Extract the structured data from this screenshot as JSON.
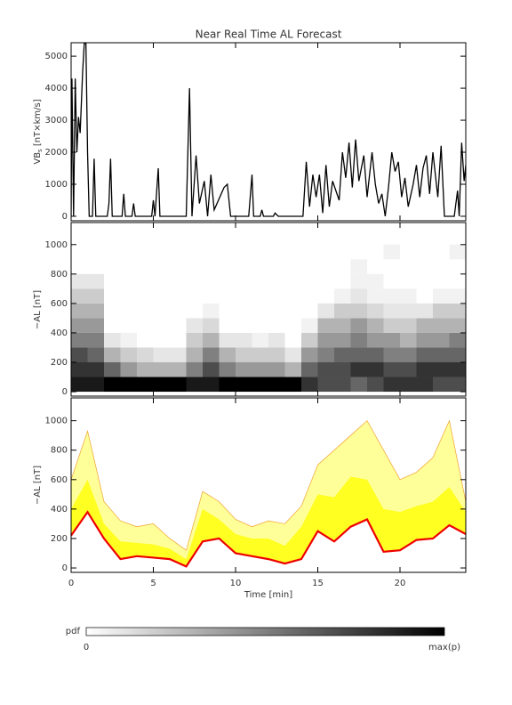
{
  "chart_data": [
    {
      "type": "line",
      "title": "Near Real Time AL Forecast",
      "ylabel": {
        "main": "VB",
        "sub": "s",
        "unit": "[nT×km/s]"
      },
      "color": "#000000",
      "x": [
        0,
        0.05,
        0.15,
        0.25,
        0.35,
        0.45,
        0.55,
        0.7,
        0.8,
        0.9,
        1.0,
        1.1,
        1.3,
        1.4,
        1.5,
        2.2,
        2.3,
        2.4,
        2.5,
        3.1,
        3.2,
        3.3,
        3.7,
        3.8,
        3.9,
        4.9,
        5.0,
        5.1,
        5.3,
        5.4,
        7.0,
        7.2,
        7.35,
        7.6,
        7.8,
        8.1,
        8.3,
        8.5,
        8.7,
        9.3,
        9.5,
        9.7,
        10.8,
        11.0,
        11.1,
        11.5,
        11.6,
        11.7,
        12.3,
        12.4,
        12.6,
        14.1,
        14.3,
        14.5,
        14.7,
        14.9,
        15.1,
        15.3,
        15.5,
        15.7,
        15.9,
        16.3,
        16.5,
        16.7,
        16.9,
        17.1,
        17.3,
        17.5,
        17.8,
        18.0,
        18.3,
        18.5,
        18.7,
        18.9,
        19.1,
        19.3,
        19.5,
        19.7,
        19.9,
        20.1,
        20.3,
        20.5,
        20.8,
        21.0,
        21.2,
        21.4,
        21.6,
        21.8,
        22.0,
        22.3,
        22.5,
        22.7,
        23.3,
        23.5,
        23.6,
        23.75,
        23.9,
        24.0
      ],
      "y": [
        0,
        4300,
        0,
        4300,
        2000,
        3100,
        2600,
        4500,
        5400,
        5400,
        2000,
        0,
        0,
        1800,
        0,
        0,
        400,
        1800,
        0,
        0,
        700,
        0,
        0,
        400,
        0,
        0,
        500,
        0,
        1500,
        0,
        0,
        4000,
        0,
        1900,
        400,
        1100,
        0,
        1300,
        200,
        900,
        1000,
        0,
        0,
        1300,
        0,
        0,
        200,
        0,
        0,
        100,
        0,
        0,
        1700,
        300,
        1300,
        600,
        1300,
        100,
        1600,
        300,
        1100,
        500,
        2000,
        1200,
        2300,
        900,
        2400,
        1100,
        1900,
        600,
        2000,
        1000,
        400,
        700,
        0,
        900,
        2000,
        1400,
        1700,
        600,
        1200,
        300,
        1000,
        1600,
        600,
        1500,
        1900,
        700,
        2000,
        600,
        2200,
        0,
        0,
        800,
        0,
        2300,
        1100,
        1600
      ],
      "xlim": [
        0,
        24
      ],
      "xticks": [
        0,
        5,
        10,
        15,
        20
      ],
      "ylim": [
        -140,
        5420
      ],
      "yticks": [
        0,
        1000,
        2000,
        3000,
        4000,
        5000
      ]
    },
    {
      "type": "heatmap",
      "ylabel": "−AL [nT]",
      "x_bins": [
        0,
        1,
        2,
        3,
        4,
        5,
        6,
        7,
        8,
        9,
        10,
        11,
        12,
        13,
        14,
        15,
        16,
        17,
        18,
        19,
        20,
        21,
        22,
        23,
        24
      ],
      "y_bins": [
        0,
        100,
        200,
        300,
        400,
        500,
        600,
        700,
        800,
        900,
        1000
      ],
      "z": [
        [
          0.9,
          0.8,
          0.7,
          0.5,
          0.4,
          0.3,
          0.2,
          0.1,
          0,
          0
        ],
        [
          0.9,
          0.8,
          0.6,
          0.5,
          0.4,
          0.3,
          0.2,
          0.1,
          0,
          0
        ],
        [
          1,
          0.6,
          0.3,
          0.1,
          0,
          0,
          0,
          0,
          0,
          0
        ],
        [
          1,
          0.4,
          0.2,
          0.05,
          0,
          0,
          0,
          0,
          0,
          0
        ],
        [
          1,
          0.3,
          0.15,
          0,
          0,
          0,
          0,
          0,
          0,
          0
        ],
        [
          1,
          0.3,
          0.1,
          0,
          0,
          0,
          0,
          0,
          0,
          0
        ],
        [
          1,
          0.3,
          0.1,
          0,
          0,
          0,
          0,
          0,
          0,
          0
        ],
        [
          0.9,
          0.5,
          0.3,
          0.2,
          0.1,
          0,
          0,
          0,
          0,
          0
        ],
        [
          0.9,
          0.7,
          0.5,
          0.3,
          0.15,
          0.05,
          0,
          0,
          0,
          0
        ],
        [
          1,
          0.5,
          0.3,
          0.1,
          0,
          0,
          0,
          0,
          0,
          0
        ],
        [
          1,
          0.4,
          0.2,
          0.1,
          0,
          0,
          0,
          0,
          0,
          0
        ],
        [
          1,
          0.4,
          0.2,
          0.05,
          0,
          0,
          0,
          0,
          0,
          0
        ],
        [
          1,
          0.4,
          0.2,
          0.1,
          0,
          0,
          0,
          0,
          0,
          0
        ],
        [
          1,
          0.3,
          0.1,
          0,
          0,
          0,
          0,
          0,
          0,
          0
        ],
        [
          0.8,
          0.6,
          0.4,
          0.2,
          0.05,
          0,
          0,
          0,
          0,
          0
        ],
        [
          0.7,
          0.7,
          0.5,
          0.4,
          0.3,
          0.1,
          0,
          0,
          0,
          0
        ],
        [
          0.7,
          0.7,
          0.6,
          0.4,
          0.3,
          0.2,
          0.05,
          0,
          0,
          0
        ],
        [
          0.6,
          0.8,
          0.6,
          0.5,
          0.4,
          0.2,
          0.1,
          0.05,
          0.05,
          0
        ],
        [
          0.7,
          0.8,
          0.6,
          0.4,
          0.3,
          0.15,
          0.05,
          0.05,
          0,
          0
        ],
        [
          0.8,
          0.7,
          0.5,
          0.4,
          0.2,
          0.1,
          0.05,
          0,
          0,
          0.05
        ],
        [
          0.8,
          0.7,
          0.5,
          0.3,
          0.2,
          0.1,
          0.05,
          0,
          0,
          0
        ],
        [
          0.8,
          0.8,
          0.6,
          0.4,
          0.3,
          0.1,
          0,
          0,
          0,
          0
        ],
        [
          0.7,
          0.8,
          0.6,
          0.4,
          0.3,
          0.2,
          0.05,
          0,
          0,
          0
        ],
        [
          0.7,
          0.8,
          0.6,
          0.5,
          0.3,
          0.2,
          0.05,
          0,
          0,
          0.05
        ]
      ],
      "xlim": [
        0,
        24
      ],
      "xticks": [
        0,
        5,
        10,
        15,
        20
      ],
      "ylim": [
        -30,
        1150
      ],
      "yticks": [
        0,
        200,
        400,
        600,
        800,
        1000
      ],
      "colorbar": {
        "label": "pdf",
        "min_label": "0",
        "max_label": "max(p)"
      }
    },
    {
      "type": "band",
      "ylabel": "−AL [nT]",
      "xlabel": "Time [min]",
      "x": [
        0,
        1,
        2,
        3,
        4,
        5,
        6,
        7,
        8,
        9,
        10,
        11,
        12,
        13,
        14,
        15,
        16,
        17,
        18,
        19,
        20,
        21,
        22,
        23,
        24
      ],
      "upper": [
        600,
        930,
        450,
        320,
        280,
        300,
        200,
        120,
        520,
        450,
        330,
        280,
        320,
        300,
        420,
        700,
        800,
        900,
        1000,
        800,
        600,
        650,
        750,
        1000,
        450
      ],
      "band_upper": [
        400,
        600,
        300,
        180,
        170,
        160,
        130,
        60,
        400,
        330,
        230,
        200,
        200,
        150,
        280,
        500,
        480,
        620,
        600,
        400,
        380,
        420,
        450,
        550,
        380
      ],
      "median": [
        220,
        380,
        200,
        60,
        80,
        70,
        60,
        10,
        180,
        200,
        100,
        80,
        60,
        30,
        60,
        250,
        180,
        280,
        330,
        110,
        120,
        190,
        200,
        290,
        230
      ],
      "colors": {
        "upper": "#ffff99",
        "upper_edge": "#f0a030",
        "band_upper": "#ffff22",
        "median": "#ee0000"
      },
      "xlim": [
        0,
        24
      ],
      "xticks": [
        0,
        5,
        10,
        15,
        20
      ],
      "ylim": [
        -30,
        1155
      ],
      "yticks": [
        0,
        200,
        400,
        600,
        800,
        1000
      ]
    }
  ]
}
